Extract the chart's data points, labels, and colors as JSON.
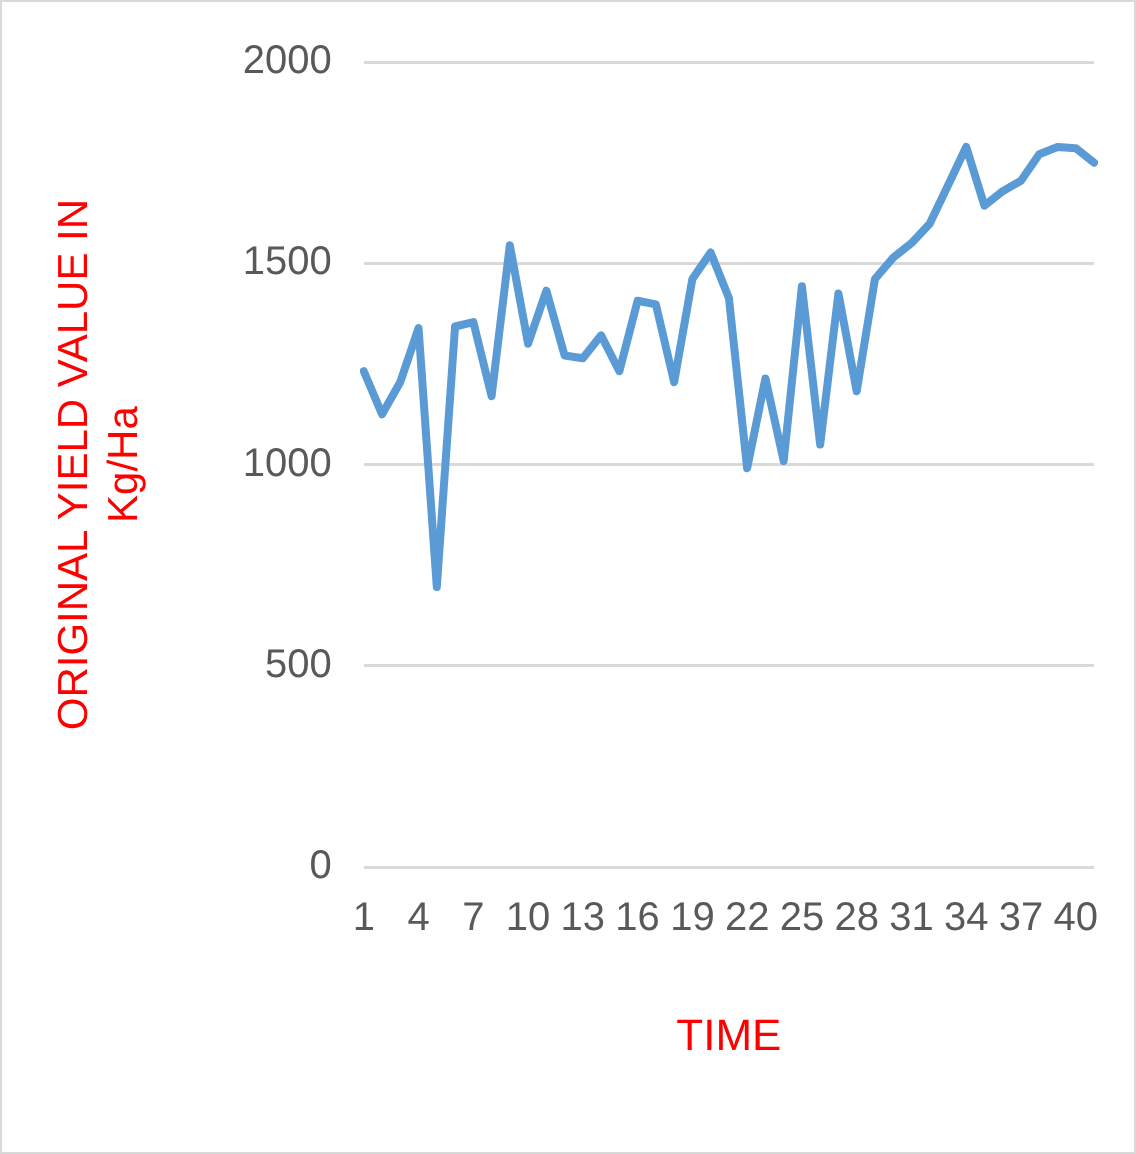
{
  "chart_data": {
    "type": "line",
    "xlabel": "TIME",
    "ylabel": "ORIGINAL YIELD VALUE IN Kg/Ha",
    "categories": [
      "1",
      null,
      null,
      "4",
      null,
      null,
      "7",
      null,
      null,
      "10",
      null,
      null,
      "13",
      null,
      null,
      "16",
      null,
      null,
      "19",
      null,
      null,
      "22",
      null,
      null,
      "25",
      null,
      null,
      "28",
      null,
      null,
      "31",
      null,
      null,
      "34",
      null,
      null,
      "37",
      null,
      null,
      "40",
      null
    ],
    "series": [
      {
        "color": "#5b9bd5",
        "values": [
          1232,
          1125,
          1205,
          1339,
          696,
          1343,
          1354,
          1170,
          1545,
          1300,
          1432,
          1271,
          1264,
          1321,
          1232,
          1407,
          1398,
          1205,
          1461,
          1527,
          1414,
          991,
          1214,
          1009,
          1443,
          1050,
          1425,
          1182,
          1461,
          1514,
          1550,
          1598,
          1693,
          1789,
          1643,
          1679,
          1705,
          1771,
          1789,
          1786,
          1750
        ]
      }
    ],
    "ylim": [
      0,
      2000
    ],
    "yticks": [
      0,
      500,
      1000,
      1500,
      2000
    ],
    "grid": "y",
    "legend": false,
    "marker": "none",
    "line_style": "solid"
  }
}
